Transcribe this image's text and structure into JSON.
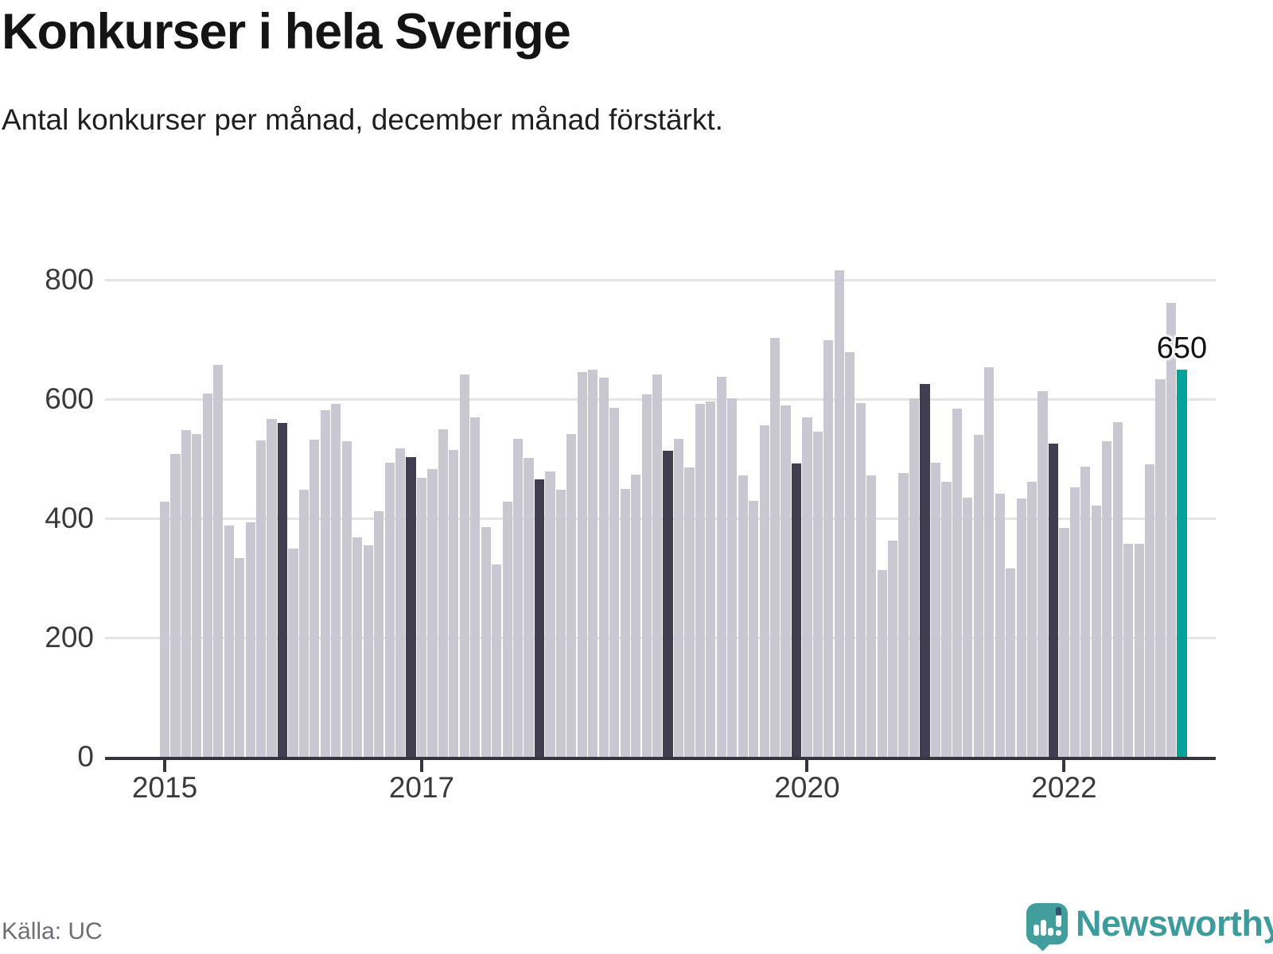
{
  "header": {
    "title": "Konkurser i hela Sverige",
    "subtitle": "Antal konkurser per månad, december månad förstärkt."
  },
  "chart_data": {
    "type": "bar",
    "title": "Konkurser i hela Sverige",
    "subtitle": "Antal konkurser per månad, december månad förstärkt.",
    "xlabel": "",
    "ylabel": "",
    "frequency": "monthly",
    "start": "2015-01",
    "end": "2022-12",
    "ylim": [
      0,
      830
    ],
    "yticks": [
      0,
      200,
      400,
      600,
      800
    ],
    "grid": "horizontal",
    "xticks": [
      {
        "label": "2015",
        "month_index": 0
      },
      {
        "label": "2017",
        "month_index": 24
      },
      {
        "label": "2020",
        "month_index": 60
      },
      {
        "label": "2022",
        "month_index": 84
      }
    ],
    "series": [
      {
        "year": 2015,
        "values": [
          428,
          508,
          548,
          541,
          609,
          657,
          388,
          334,
          393,
          531,
          567,
          560
        ]
      },
      {
        "year": 2016,
        "values": [
          350,
          448,
          532,
          582,
          592,
          530,
          368,
          355,
          412,
          494,
          517,
          503
        ]
      },
      {
        "year": 2017,
        "values": [
          468,
          483,
          550,
          515,
          641,
          570,
          385,
          323,
          428,
          534,
          501,
          466
        ]
      },
      {
        "year": 2018,
        "values": [
          479,
          448,
          541,
          646,
          650,
          636,
          585,
          449,
          474,
          608,
          642,
          514
        ]
      },
      {
        "year": 2019,
        "values": [
          534,
          485,
          592,
          596,
          637,
          602,
          472,
          430,
          556,
          703,
          589,
          492
        ]
      },
      {
        "year": 2020,
        "values": [
          569,
          545,
          699,
          816,
          679,
          593,
          472,
          313,
          363,
          476,
          601,
          626
        ]
      },
      {
        "year": 2021,
        "values": [
          494,
          462,
          584,
          435,
          540,
          653,
          442,
          316,
          433,
          462,
          614,
          526
        ]
      },
      {
        "year": 2022,
        "values": [
          384,
          452,
          487,
          421,
          529,
          562,
          357,
          357,
          491,
          633,
          762,
          650
        ]
      }
    ],
    "emphasis": "december",
    "highlight": {
      "index": 95,
      "month": "2022-12",
      "value": 650,
      "label": "650"
    },
    "colors": {
      "bar": "#c9c7d2",
      "december": "#403e50",
      "highlight": "#00a39a",
      "gridline": "#e4e4e4",
      "axis": "#35343f"
    }
  },
  "footer": {
    "source": "Källa: UC",
    "brand": "Newsworthy"
  }
}
